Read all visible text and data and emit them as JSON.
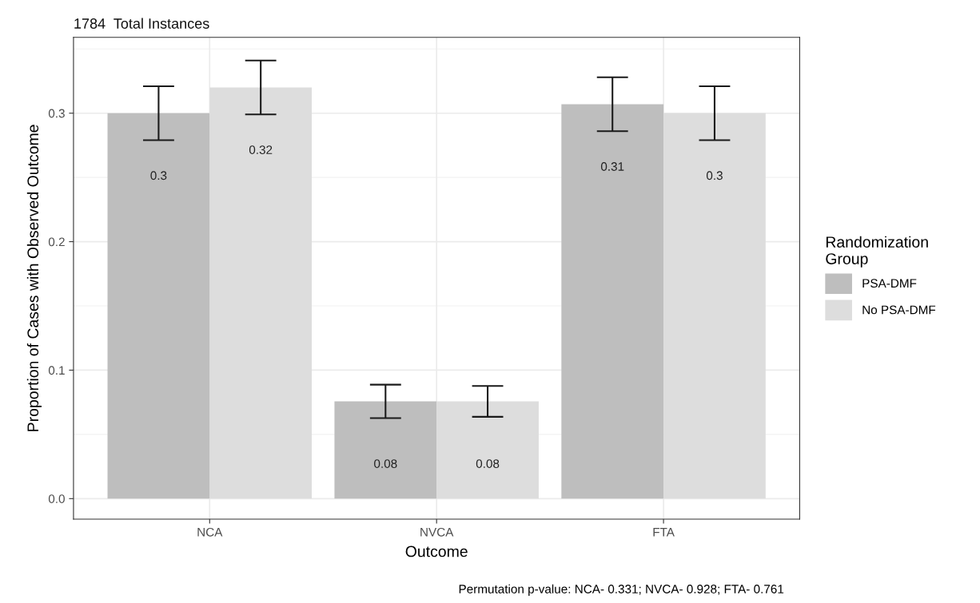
{
  "chart_data": {
    "type": "bar",
    "title": "1784  Total Instances",
    "xlabel": "Outcome",
    "ylabel": "Proportion of Cases with Observed Outcome",
    "legend_title": "Randomization\nGroup",
    "categories": [
      "NCA",
      "NVCA",
      "FTA"
    ],
    "series": [
      {
        "name": "PSA-DMF",
        "color": "#bebebe",
        "values": [
          0.3,
          0.0757,
          0.307
        ],
        "errors": [
          0.021,
          0.013,
          0.021
        ],
        "value_labels": [
          "0.3",
          "0.08",
          "0.31"
        ]
      },
      {
        "name": "No PSA-DMF",
        "color": "#dddddd",
        "values": [
          0.32,
          0.0757,
          0.3
        ],
        "errors": [
          0.021,
          0.012,
          0.021
        ],
        "value_labels": [
          "0.32",
          "0.08",
          "0.3"
        ]
      }
    ],
    "ylim": [
      -0.016,
      0.359
    ],
    "yticks": [
      {
        "value": 0,
        "label": "0.0"
      },
      0.1,
      0.2,
      0.3
    ],
    "grid": true,
    "legend": "right",
    "annotations": [
      "Permutation p-value: NCA- 0.331; NVCA- 0.928; FTA- 0.761"
    ]
  }
}
